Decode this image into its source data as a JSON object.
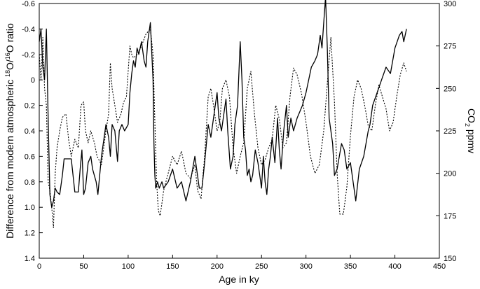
{
  "chart_data": {
    "type": "line",
    "xlabel": "Age in ky",
    "ylabel_left": "Difference from modern atmospheric 18O/16O ratio",
    "ylabel_left_parts": {
      "prefix": "Difference from modern atmospheric ",
      "sup1": "18",
      "mid": "O/",
      "sup2": "16",
      "suffix": "O ratio"
    },
    "ylabel_right": "CO2 ppmv",
    "ylabel_right_parts": {
      "prefix": "CO",
      "sub": "2",
      "suffix": " ppmv"
    },
    "xlim": [
      0,
      450
    ],
    "ylim_left": [
      -0.6,
      1.4
    ],
    "ylim_left_inverted": true,
    "ylim_right": [
      150,
      300
    ],
    "x_ticks": [
      "0",
      "50",
      "100",
      "150",
      "200",
      "250",
      "300",
      "350",
      "400",
      "450"
    ],
    "y_left_ticks": [
      "-0.6",
      "-0.4",
      "-0.2",
      "0",
      "0.2",
      "0.4",
      "0.6",
      "0.8",
      "1.0",
      "1.2",
      "1.4"
    ],
    "y_right_ticks": [
      "150",
      "175",
      "200",
      "225",
      "250",
      "275",
      "300"
    ],
    "grid": false,
    "series": [
      {
        "style": "solid",
        "axis": "left",
        "color": "#000000",
        "x": [
          0,
          2,
          4,
          6,
          8,
          10,
          12,
          14,
          16,
          18,
          20,
          23,
          26,
          28,
          30,
          33,
          36,
          40,
          44,
          46,
          48,
          50,
          52,
          55,
          58,
          60,
          64,
          66,
          70,
          75,
          78,
          80,
          82,
          85,
          88,
          90,
          93,
          96,
          100,
          102,
          104,
          106,
          108,
          110,
          112,
          115,
          118,
          120,
          122,
          125,
          128,
          129,
          130,
          131,
          133,
          135,
          138,
          140,
          145,
          150,
          155,
          160,
          165,
          170,
          175,
          180,
          183,
          186,
          190,
          193,
          196,
          198,
          200,
          202,
          205,
          208,
          210,
          212,
          215,
          218,
          220,
          223,
          226,
          228,
          230,
          232,
          234,
          236,
          238,
          240,
          243,
          246,
          248,
          250,
          252,
          254,
          256,
          258,
          260,
          262,
          265,
          268,
          270,
          272,
          275,
          278,
          280,
          283,
          286,
          290,
          293,
          296,
          300,
          303,
          306,
          310,
          313,
          316,
          318,
          320,
          322,
          324,
          326,
          330,
          332,
          335,
          340,
          343,
          346,
          350,
          353,
          356,
          360,
          365,
          370,
          372,
          375,
          380,
          385,
          390,
          395,
          400,
          405,
          408,
          410,
          413
        ],
        "y": [
          -0.3,
          -0.4,
          -0.1,
          0.0,
          -0.4,
          0.3,
          0.9,
          1.0,
          0.95,
          0.85,
          0.88,
          0.9,
          0.75,
          0.62,
          0.62,
          0.62,
          0.62,
          0.88,
          0.88,
          0.7,
          0.55,
          0.9,
          0.85,
          0.65,
          0.6,
          0.7,
          0.8,
          0.9,
          0.6,
          0.35,
          0.45,
          0.6,
          0.35,
          0.4,
          0.64,
          0.4,
          0.35,
          0.4,
          0.35,
          0.1,
          -0.05,
          -0.15,
          -0.1,
          -0.25,
          -0.2,
          -0.3,
          -0.15,
          -0.1,
          -0.3,
          -0.45,
          0.0,
          0.5,
          0.75,
          0.85,
          0.8,
          0.85,
          0.8,
          0.85,
          0.8,
          0.7,
          0.85,
          0.8,
          0.95,
          0.8,
          0.6,
          0.85,
          0.85,
          0.65,
          0.35,
          0.45,
          0.3,
          0.2,
          0.1,
          0.3,
          0.4,
          0.25,
          0.15,
          0.4,
          0.7,
          0.6,
          0.35,
          0.2,
          -0.3,
          0.0,
          0.45,
          0.55,
          0.75,
          0.7,
          0.8,
          0.75,
          0.55,
          0.65,
          0.75,
          0.85,
          0.6,
          0.8,
          0.9,
          0.7,
          0.6,
          0.45,
          0.65,
          0.3,
          0.55,
          0.7,
          0.4,
          0.2,
          0.45,
          0.3,
          0.4,
          0.3,
          0.25,
          0.2,
          0.1,
          0.0,
          -0.1,
          -0.15,
          -0.2,
          -0.35,
          -0.25,
          -0.45,
          -0.65,
          -0.25,
          0.3,
          0.5,
          0.75,
          0.7,
          0.5,
          0.55,
          0.7,
          0.65,
          0.8,
          0.95,
          0.7,
          0.6,
          0.4,
          0.35,
          0.2,
          0.1,
          0.0,
          -0.1,
          -0.05,
          -0.25,
          -0.35,
          -0.38,
          -0.3,
          -0.4
        ]
      },
      {
        "style": "dotted",
        "axis": "right",
        "color": "#000000",
        "x": [
          0,
          2,
          4,
          6,
          8,
          10,
          12,
          14,
          16,
          18,
          20,
          23,
          26,
          30,
          33,
          36,
          40,
          44,
          47,
          50,
          52,
          55,
          58,
          62,
          65,
          70,
          75,
          78,
          80,
          82,
          85,
          88,
          92,
          95,
          98,
          100,
          102,
          104,
          106,
          110,
          115,
          120,
          125,
          128,
          130,
          132,
          134,
          136,
          140,
          145,
          150,
          155,
          160,
          165,
          170,
          175,
          178,
          182,
          186,
          190,
          193,
          196,
          200,
          203,
          206,
          210,
          214,
          218,
          222,
          226,
          230,
          234,
          238,
          242,
          246,
          250,
          254,
          258,
          262,
          266,
          270,
          274,
          278,
          282,
          286,
          290,
          295,
          300,
          305,
          310,
          315,
          320,
          325,
          328,
          332,
          335,
          338,
          342,
          346,
          350,
          354,
          358,
          362,
          366,
          370,
          374,
          378,
          382,
          386,
          390,
          394,
          398,
          402,
          406,
          410,
          413
        ],
        "y": [
          270,
          255,
          280,
          250,
          240,
          195,
          190,
          180,
          168,
          200,
          215,
          225,
          233,
          235,
          220,
          210,
          220,
          215,
          240,
          242,
          225,
          218,
          225,
          218,
          210,
          205,
          225,
          235,
          265,
          250,
          240,
          230,
          235,
          242,
          245,
          260,
          275,
          270,
          268,
          270,
          275,
          282,
          285,
          270,
          230,
          195,
          178,
          175,
          190,
          200,
          210,
          205,
          213,
          200,
          197,
          205,
          190,
          185,
          210,
          245,
          250,
          240,
          225,
          230,
          250,
          255,
          245,
          215,
          200,
          210,
          218,
          250,
          260,
          235,
          215,
          205,
          208,
          215,
          220,
          240,
          232,
          215,
          218,
          245,
          262,
          258,
          247,
          230,
          210,
          200,
          205,
          225,
          260,
          280,
          242,
          200,
          176,
          176,
          192,
          222,
          245,
          255,
          250,
          240,
          228,
          225,
          240,
          252,
          245,
          238,
          225,
          230,
          245,
          258,
          265,
          260
        ]
      }
    ]
  }
}
